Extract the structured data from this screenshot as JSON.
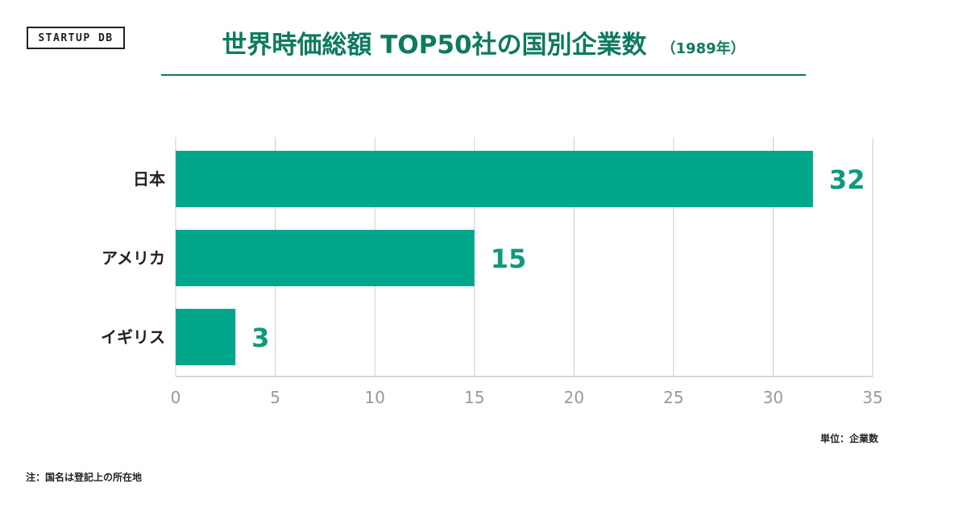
{
  "logo": "STARTUP DB",
  "title": "世界時価総額 TOP50社の国別企業数",
  "title_year": "（1989年）",
  "unit_note": "単位：企業数",
  "footnote": "注：国名は登記上の所在地",
  "colors": {
    "bar": "#00a78a",
    "title": "#0e7a5f",
    "grid": "#c8cdd3"
  },
  "chart_data": {
    "type": "bar",
    "orientation": "horizontal",
    "categories": [
      "日本",
      "アメリカ",
      "イギリス"
    ],
    "values": [
      32,
      15,
      3
    ],
    "xticks": [
      0,
      5,
      10,
      15,
      20,
      25,
      30,
      35
    ],
    "xlim": [
      0,
      35
    ],
    "grid": true
  }
}
